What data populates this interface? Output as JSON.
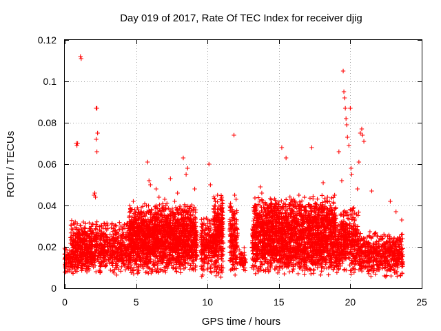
{
  "chart_data": {
    "type": "scatter",
    "title": "Day 019 of 2017, Rate Of TEC Index for receiver djig",
    "xlabel": "GPS time / hours",
    "ylabel": "ROTI / TECUs",
    "xlim": [
      0,
      25
    ],
    "ylim": [
      0,
      0.12
    ],
    "x_ticks": [
      0,
      5,
      10,
      15,
      20,
      25
    ],
    "x_tick_labels": [
      "0",
      "5",
      "10",
      "15",
      "20",
      "25"
    ],
    "y_ticks": [
      0,
      0.02,
      0.04,
      0.06,
      0.08,
      0.1,
      0.12
    ],
    "y_tick_labels": [
      "0",
      "0.02",
      "0.04",
      "0.06",
      "0.08",
      "0.1",
      "0.12"
    ],
    "grid": true,
    "marker": "+",
    "series": [
      {
        "name": "ROTI",
        "color": "#ff0000",
        "x": [
          0.0,
          0.12,
          0.25,
          0.4,
          0.55,
          0.7,
          0.85,
          0.95,
          1.0,
          1.1,
          1.2,
          1.35,
          1.5,
          1.65,
          1.8,
          1.95,
          2.1,
          2.2,
          2.3,
          2.45,
          2.6,
          2.75,
          2.9,
          3.05,
          3.2,
          3.35,
          3.5,
          3.65,
          3.8,
          3.95,
          4.1,
          4.25,
          4.4,
          4.55,
          4.7,
          4.85,
          5.0,
          5.15,
          5.3,
          5.45,
          5.6,
          5.75,
          5.9,
          6.05,
          6.2,
          6.35,
          6.5,
          6.65,
          6.8,
          6.95,
          7.1,
          7.25,
          7.4,
          7.55,
          7.7,
          7.85,
          8.0,
          8.15,
          8.3,
          8.45,
          8.6,
          8.75,
          8.9,
          9.05,
          9.2,
          9.6,
          9.75,
          9.9,
          10.05,
          10.2,
          10.35,
          10.5,
          10.65,
          10.8,
          10.95,
          11.55,
          11.65,
          11.75,
          11.85,
          11.95,
          12.05,
          12.3,
          12.45,
          12.6,
          13.15,
          13.3,
          13.45,
          13.6,
          13.75,
          13.9,
          14.05,
          14.2,
          14.35,
          14.5,
          14.65,
          14.8,
          14.95,
          15.1,
          15.25,
          15.4,
          15.55,
          15.7,
          15.85,
          16.0,
          16.15,
          16.3,
          16.45,
          16.6,
          16.75,
          16.9,
          17.05,
          17.2,
          17.35,
          17.5,
          17.65,
          17.8,
          17.95,
          18.1,
          18.25,
          18.4,
          18.55,
          18.7,
          18.85,
          19.0,
          19.15,
          19.3,
          19.45,
          19.55,
          19.65,
          19.75,
          19.85,
          19.95,
          20.05,
          20.15,
          20.3,
          20.45,
          20.6,
          20.75,
          20.9,
          21.05,
          21.2,
          21.35,
          21.5,
          21.65,
          21.8,
          21.95,
          22.1,
          22.25,
          22.4,
          22.55,
          22.7,
          22.85,
          23.0,
          23.15,
          23.3,
          23.45,
          23.6,
          0.8,
          0.85,
          0.9,
          1.1,
          1.15,
          1.3,
          2.05,
          2.1,
          2.15,
          2.2,
          2.25,
          2.3,
          2.2,
          2.25,
          4.8,
          4.9,
          5.8,
          5.9,
          6.0,
          6.4,
          6.6,
          7.0,
          7.4,
          7.7,
          7.9,
          8.3,
          8.5,
          8.6,
          9.1,
          10.1,
          10.2,
          10.7,
          10.9,
          11.0,
          11.85,
          11.9,
          12.0,
          13.7,
          13.8,
          15.2,
          15.5,
          16.4,
          17.3,
          18.1,
          18.4,
          18.6,
          18.9,
          19.2,
          19.4,
          19.5,
          19.55,
          19.6,
          19.65,
          19.7,
          19.75,
          19.8,
          19.9,
          20.0,
          20.05,
          20.1,
          20.5,
          20.6,
          20.7,
          20.8,
          20.85,
          20.95,
          21.5,
          22.8,
          23.2,
          23.6
        ],
        "y": [
          0.014,
          0.012,
          0.016,
          0.011,
          0.015,
          0.013,
          0.018,
          0.02,
          0.022,
          0.016,
          0.014,
          0.012,
          0.013,
          0.017,
          0.019,
          0.021,
          0.025,
          0.018,
          0.014,
          0.012,
          0.013,
          0.015,
          0.017,
          0.014,
          0.016,
          0.018,
          0.015,
          0.013,
          0.014,
          0.016,
          0.018,
          0.02,
          0.017,
          0.015,
          0.019,
          0.022,
          0.024,
          0.02,
          0.018,
          0.022,
          0.025,
          0.021,
          0.019,
          0.023,
          0.026,
          0.022,
          0.018,
          0.02,
          0.024,
          0.021,
          0.019,
          0.022,
          0.025,
          0.021,
          0.018,
          0.02,
          0.023,
          0.019,
          0.017,
          0.02,
          0.018,
          0.016,
          0.015,
          0.017,
          0.014,
          0.016,
          0.02,
          0.018,
          0.022,
          0.025,
          0.02,
          0.023,
          0.027,
          0.022,
          0.018,
          0.02,
          0.025,
          0.03,
          0.024,
          0.019,
          0.015,
          0.017,
          0.014,
          0.016,
          0.018,
          0.021,
          0.019,
          0.023,
          0.026,
          0.022,
          0.019,
          0.021,
          0.018,
          0.02,
          0.022,
          0.019,
          0.017,
          0.02,
          0.018,
          0.021,
          0.019,
          0.016,
          0.018,
          0.02,
          0.017,
          0.019,
          0.021,
          0.018,
          0.016,
          0.019,
          0.017,
          0.02,
          0.022,
          0.019,
          0.017,
          0.02,
          0.018,
          0.021,
          0.023,
          0.02,
          0.018,
          0.02,
          0.022,
          0.024,
          0.02,
          0.022,
          0.025,
          0.028,
          0.024,
          0.021,
          0.026,
          0.023,
          0.025,
          0.022,
          0.019,
          0.021,
          0.018,
          0.02,
          0.017,
          0.015,
          0.016,
          0.018,
          0.015,
          0.013,
          0.014,
          0.016,
          0.018,
          0.015,
          0.013,
          0.015,
          0.017,
          0.014,
          0.016,
          0.018,
          0.015,
          0.013,
          0.014,
          0.07,
          0.069,
          0.07,
          0.112,
          0.111,
          0.032,
          0.045,
          0.046,
          0.044,
          0.087,
          0.087,
          0.075,
          0.072,
          0.066,
          0.042,
          0.038,
          0.061,
          0.052,
          0.05,
          0.048,
          0.044,
          0.043,
          0.053,
          0.042,
          0.046,
          0.063,
          0.055,
          0.058,
          0.048,
          0.06,
          0.05,
          0.045,
          0.038,
          0.044,
          0.074,
          0.045,
          0.043,
          0.049,
          0.046,
          0.068,
          0.063,
          0.045,
          0.068,
          0.051,
          0.044,
          0.04,
          0.045,
          0.066,
          0.052,
          0.105,
          0.095,
          0.092,
          0.087,
          0.082,
          0.079,
          0.073,
          0.069,
          0.087,
          0.058,
          0.055,
          0.048,
          0.061,
          0.075,
          0.077,
          0.074,
          0.071,
          0.047,
          0.042,
          0.037,
          0.033
        ],
        "dense_bands": [
          {
            "x": [
              0.0,
              2.2
            ],
            "y": [
              0.006,
              0.022
            ]
          },
          {
            "x": [
              0.4,
              2.3
            ],
            "y": [
              0.014,
              0.033
            ]
          },
          {
            "x": [
              2.35,
              9.3
            ],
            "y": [
              0.006,
              0.033
            ]
          },
          {
            "x": [
              4.5,
              9.2
            ],
            "y": [
              0.018,
              0.042
            ]
          },
          {
            "x": [
              9.55,
              11.1
            ],
            "y": [
              0.005,
              0.035
            ]
          },
          {
            "x": [
              10.4,
              11.1
            ],
            "y": [
              0.02,
              0.046
            ]
          },
          {
            "x": [
              11.55,
              12.1
            ],
            "y": [
              0.004,
              0.044
            ]
          },
          {
            "x": [
              12.2,
              12.7
            ],
            "y": [
              0.008,
              0.02
            ]
          },
          {
            "x": [
              13.1,
              19.3
            ],
            "y": [
              0.006,
              0.032
            ]
          },
          {
            "x": [
              13.2,
              19.0
            ],
            "y": [
              0.02,
              0.045
            ]
          },
          {
            "x": [
              19.3,
              20.6
            ],
            "y": [
              0.006,
              0.04
            ]
          },
          {
            "x": [
              20.6,
              23.7
            ],
            "y": [
              0.005,
              0.028
            ]
          }
        ]
      }
    ]
  }
}
